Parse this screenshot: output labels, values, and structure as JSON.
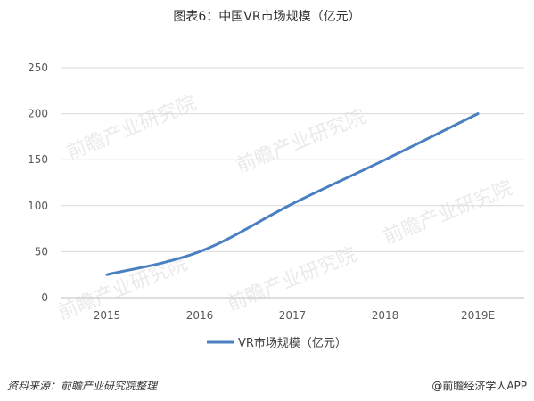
{
  "chart_data": {
    "type": "line",
    "title": "图表6：中国VR市场规模（亿元）",
    "categories": [
      "2015",
      "2016",
      "2017",
      "2018",
      "2019E"
    ],
    "series": [
      {
        "name": "VR市场规模（亿元）",
        "values": [
          25,
          50,
          102,
          150,
          200
        ],
        "color": "#4a7fc1"
      }
    ],
    "yticks": [
      0,
      50,
      100,
      150,
      200,
      250
    ],
    "ylim": [
      0,
      250
    ],
    "grid": true,
    "legend_position": "bottom"
  },
  "watermark": "前瞻产业研究院",
  "footer": {
    "source": "资料来源：前瞻产业研究院整理",
    "brand": "@前瞻经济学人APP"
  }
}
